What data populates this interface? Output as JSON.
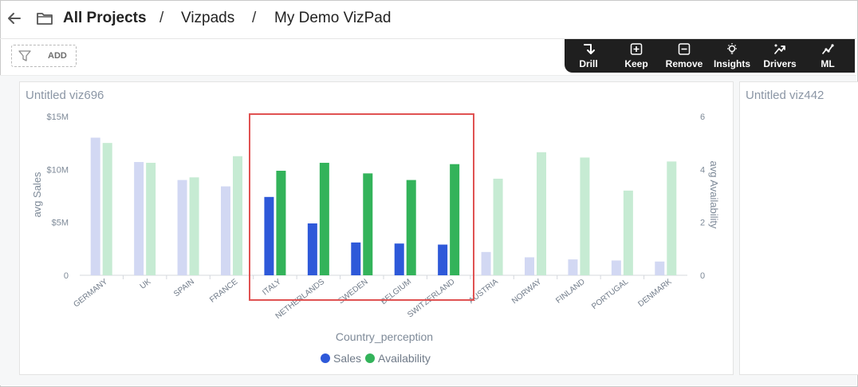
{
  "header": {
    "breadcrumb": [
      {
        "label": "All Projects"
      },
      {
        "label": "Vizpads"
      },
      {
        "label": "My Demo VizPad"
      }
    ],
    "separator": "/"
  },
  "filter": {
    "add_label": "ADD"
  },
  "toolbar": {
    "tools": [
      {
        "label": "Drill",
        "icon": "drill-icon"
      },
      {
        "label": "Keep",
        "icon": "keep-plus-icon"
      },
      {
        "label": "Remove",
        "icon": "remove-minus-icon"
      },
      {
        "label": "Insights",
        "icon": "insights-bulb-icon"
      },
      {
        "label": "Drivers",
        "icon": "drivers-icon"
      },
      {
        "label": "ML",
        "icon": "ml-trend-icon"
      }
    ]
  },
  "cards": [
    {
      "title": "Untitled viz696"
    },
    {
      "title": "Untitled viz442"
    }
  ],
  "chart_data": {
    "type": "bar",
    "title": "",
    "xlabel": "Country_perception",
    "ylabel": "avg Sales",
    "y2label": "avg Availability",
    "categories": [
      "GERMANY",
      "UK",
      "SPAIN",
      "FRANCE",
      "ITALY",
      "NETHERLANDS",
      "SWEDEN",
      "BELGIUM",
      "SWITZERLAND",
      "AUSTRIA",
      "NORWAY",
      "FINLAND",
      "PORTUGAL",
      "DENMARK"
    ],
    "highlighted": [
      "ITALY",
      "NETHERLANDS",
      "SWEDEN",
      "BELGIUM",
      "SWITZERLAND"
    ],
    "series": [
      {
        "name": "Sales",
        "axis": "left",
        "color": "#2e59d9",
        "faded_color": "#d2d8f3",
        "values": [
          13000000,
          10700000,
          9000000,
          8400000,
          7400000,
          4900000,
          3100000,
          3000000,
          2900000,
          2200000,
          1700000,
          1500000,
          1400000,
          1300000
        ]
      },
      {
        "name": "Availability",
        "axis": "right",
        "color": "#33b35a",
        "faded_color": "#c6ebd3",
        "values": [
          5.0,
          4.25,
          3.7,
          4.5,
          3.95,
          4.25,
          3.85,
          3.6,
          4.2,
          3.65,
          4.65,
          4.45,
          3.2,
          4.3
        ]
      }
    ],
    "yticks": [
      "0",
      "$5M",
      "$10M",
      "$15M"
    ],
    "y2ticks": [
      "0",
      "2",
      "4",
      "6"
    ],
    "ylim": [
      0,
      15000000
    ],
    "y2lim": [
      0,
      6
    ],
    "legend_position": "bottom-center",
    "selection_box_color": "#e05252"
  }
}
